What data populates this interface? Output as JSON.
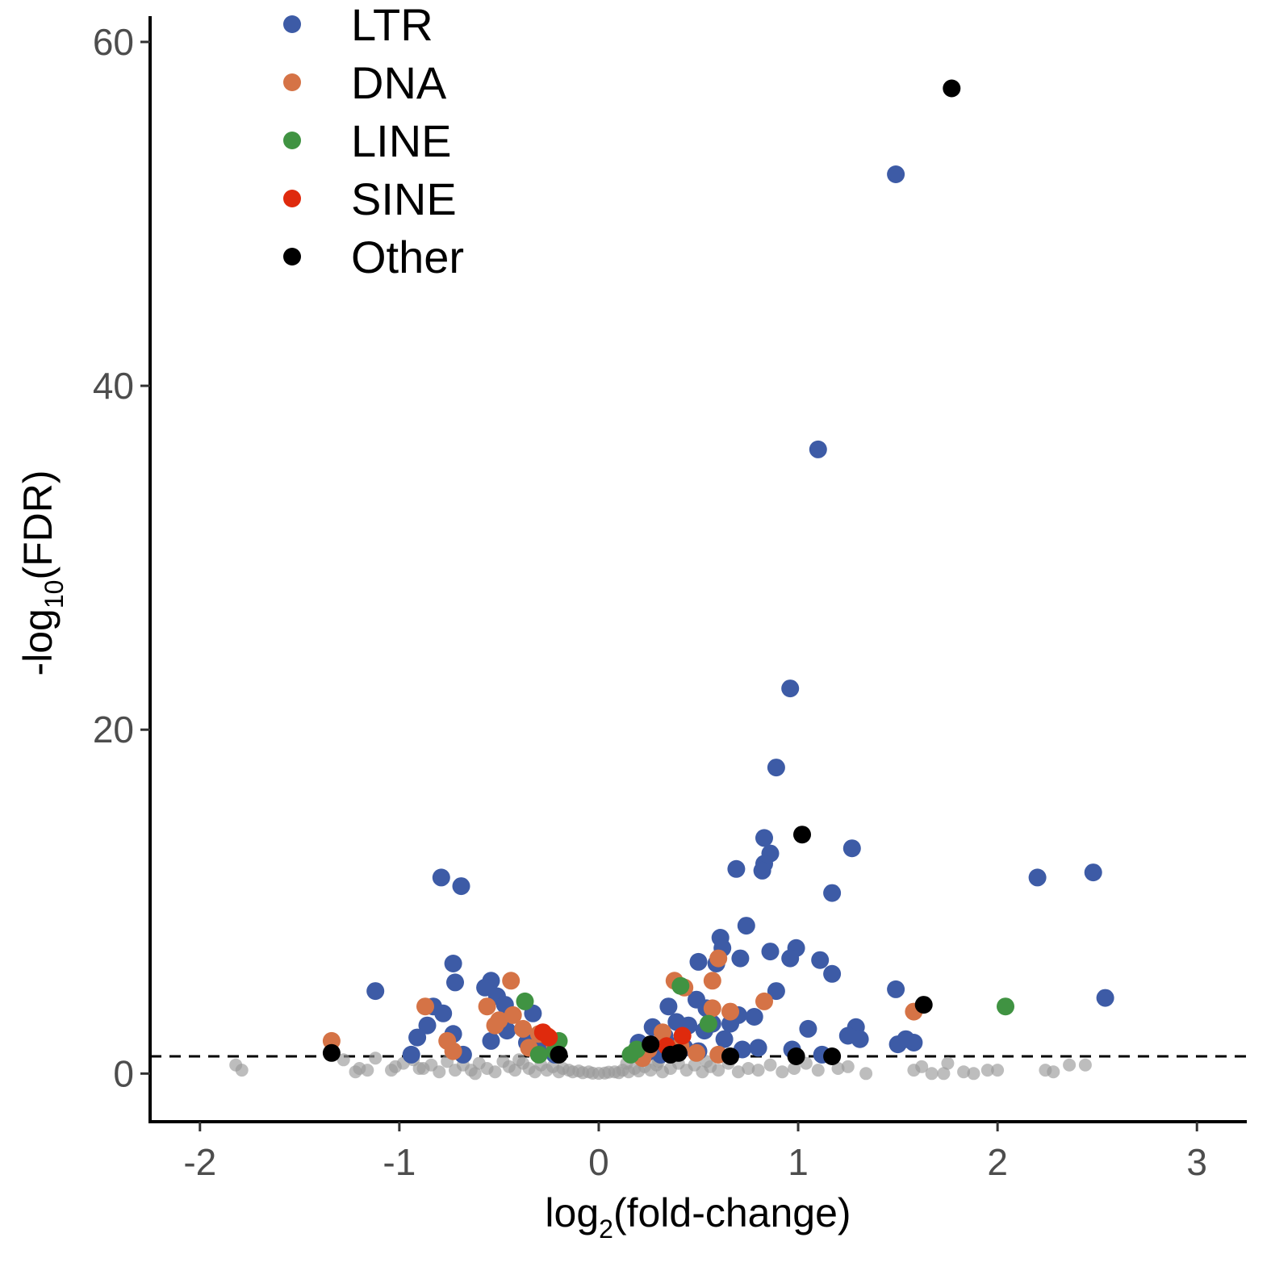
{
  "chart_data": {
    "type": "scatter",
    "title": "",
    "xlabel": {
      "prefix": "log",
      "sub": "2",
      "suffix": "(fold-change)"
    },
    "ylabel": {
      "prefix": "-log",
      "sub": "10",
      "suffix": "(FDR)"
    },
    "xlim": [
      -2.25,
      3.25
    ],
    "ylim": [
      -2.8,
      61.5
    ],
    "x_ticks": [
      -2,
      -1,
      0,
      1,
      2,
      3
    ],
    "y_ticks": [
      0,
      20,
      40,
      60
    ],
    "threshold_line": {
      "y": 1,
      "style": "dashed"
    },
    "grid": false,
    "legend_position": "top-left",
    "colors": {
      "LTR": "#3d5ba6",
      "DNA": "#d57346",
      "LINE": "#409342",
      "SINE": "#df2a0d",
      "Other": "#000000",
      "ns": "#999999"
    },
    "legend": [
      "LTR",
      "DNA",
      "LINE",
      "SINE",
      "Other"
    ],
    "series": [
      {
        "name": "LTR",
        "points": [
          [
            1.49,
            52.3
          ],
          [
            1.1,
            36.3
          ],
          [
            0.96,
            22.4
          ],
          [
            0.89,
            17.8
          ],
          [
            0.83,
            13.7
          ],
          [
            0.86,
            12.8
          ],
          [
            0.83,
            12.2
          ],
          [
            0.82,
            11.8
          ],
          [
            0.69,
            11.9
          ],
          [
            1.27,
            13.1
          ],
          [
            1.17,
            10.5
          ],
          [
            2.2,
            11.4
          ],
          [
            2.48,
            11.7
          ],
          [
            -0.79,
            11.4
          ],
          [
            -0.69,
            10.9
          ],
          [
            0.74,
            8.6
          ],
          [
            0.61,
            7.9
          ],
          [
            0.62,
            7.3
          ],
          [
            0.86,
            7.1
          ],
          [
            0.99,
            7.3
          ],
          [
            0.96,
            6.7
          ],
          [
            1.11,
            6.6
          ],
          [
            0.71,
            6.7
          ],
          [
            0.5,
            6.5
          ],
          [
            0.59,
            6.4
          ],
          [
            1.17,
            5.8
          ],
          [
            0.89,
            4.8
          ],
          [
            1.49,
            4.9
          ],
          [
            2.54,
            4.4
          ],
          [
            0.49,
            4.3
          ],
          [
            0.54,
            3.8
          ],
          [
            0.35,
            3.9
          ],
          [
            -1.12,
            4.8
          ],
          [
            -0.73,
            6.4
          ],
          [
            -0.72,
            5.3
          ],
          [
            -0.54,
            5.4
          ],
          [
            -0.57,
            5.0
          ],
          [
            -0.51,
            4.5
          ],
          [
            -0.47,
            4.0
          ],
          [
            -0.33,
            3.5
          ],
          [
            -0.83,
            3.9
          ],
          [
            -0.78,
            3.5
          ],
          [
            -0.86,
            2.8
          ],
          [
            -0.91,
            2.1
          ],
          [
            -0.73,
            2.3
          ],
          [
            -0.54,
            1.9
          ],
          [
            -0.46,
            2.5
          ],
          [
            0.7,
            3.4
          ],
          [
            0.78,
            3.3
          ],
          [
            1.05,
            2.6
          ],
          [
            1.29,
            2.7
          ],
          [
            1.25,
            2.2
          ],
          [
            1.31,
            2.0
          ],
          [
            1.5,
            1.7
          ],
          [
            1.54,
            2.0
          ],
          [
            1.58,
            1.8
          ],
          [
            0.27,
            2.7
          ],
          [
            0.33,
            2.2
          ],
          [
            0.39,
            3.0
          ],
          [
            0.45,
            2.8
          ],
          [
            0.53,
            2.5
          ],
          [
            0.57,
            2.9
          ],
          [
            0.63,
            2.0
          ],
          [
            0.66,
            2.9
          ],
          [
            0.41,
            1.8
          ],
          [
            0.2,
            1.8
          ],
          [
            0.24,
            1.2
          ],
          [
            0.31,
            1.1
          ],
          [
            0.29,
            1.6
          ],
          [
            0.37,
            1.4
          ],
          [
            0.43,
            1.5
          ],
          [
            0.5,
            1.3
          ],
          [
            0.72,
            1.4
          ],
          [
            0.8,
            1.5
          ],
          [
            0.97,
            1.4
          ],
          [
            1.12,
            1.1
          ],
          [
            -0.94,
            1.1
          ],
          [
            -0.68,
            1.1
          ],
          [
            -0.36,
            1.8
          ],
          [
            -0.28,
            1.5
          ],
          [
            -0.22,
            1.1
          ]
        ]
      },
      {
        "name": "DNA",
        "points": [
          [
            0.6,
            6.7
          ],
          [
            0.38,
            5.4
          ],
          [
            0.43,
            5.0
          ],
          [
            0.57,
            5.4
          ],
          [
            0.83,
            4.2
          ],
          [
            0.66,
            3.6
          ],
          [
            0.57,
            3.8
          ],
          [
            1.58,
            3.6
          ],
          [
            -0.44,
            5.4
          ],
          [
            -0.87,
            3.9
          ],
          [
            -0.56,
            3.9
          ],
          [
            -0.5,
            3.1
          ],
          [
            -0.52,
            2.8
          ],
          [
            -0.43,
            3.4
          ],
          [
            -0.38,
            2.6
          ],
          [
            -0.3,
            2.3
          ],
          [
            -0.26,
            2.2
          ],
          [
            -0.22,
            1.6
          ],
          [
            -0.35,
            1.5
          ],
          [
            -0.76,
            1.9
          ],
          [
            -0.73,
            1.3
          ],
          [
            -1.34,
            1.9
          ],
          [
            0.32,
            2.4
          ],
          [
            0.25,
            1.4
          ],
          [
            0.41,
            1.6
          ],
          [
            0.49,
            1.2
          ],
          [
            0.6,
            1.1
          ],
          [
            0.22,
            0.9
          ]
        ]
      },
      {
        "name": "LINE",
        "points": [
          [
            0.41,
            5.1
          ],
          [
            -0.37,
            4.2
          ],
          [
            2.04,
            3.9
          ],
          [
            0.55,
            2.9
          ],
          [
            -0.2,
            1.9
          ],
          [
            -0.22,
            1.3
          ],
          [
            0.16,
            1.1
          ],
          [
            0.19,
            1.4
          ],
          [
            -0.3,
            1.1
          ]
        ]
      },
      {
        "name": "SINE",
        "points": [
          [
            0.42,
            2.2
          ],
          [
            -0.28,
            2.4
          ],
          [
            -0.25,
            2.1
          ],
          [
            0.34,
            1.6
          ]
        ]
      },
      {
        "name": "Other",
        "points": [
          [
            1.77,
            57.3
          ],
          [
            1.02,
            13.9
          ],
          [
            1.63,
            4.0
          ],
          [
            -1.34,
            1.2
          ],
          [
            0.26,
            1.7
          ],
          [
            0.36,
            1.1
          ],
          [
            0.66,
            1.0
          ],
          [
            0.99,
            1.0
          ],
          [
            1.17,
            1.0
          ],
          [
            -0.2,
            1.1
          ],
          [
            0.4,
            1.2
          ]
        ]
      },
      {
        "name": "",
        "role": "not-significant",
        "points": [
          [
            -1.82,
            0.5
          ],
          [
            -1.79,
            0.2
          ],
          [
            -1.28,
            0.8
          ],
          [
            -1.22,
            0.1
          ],
          [
            -1.2,
            0.3
          ],
          [
            -1.16,
            0.2
          ],
          [
            -1.12,
            0.9
          ],
          [
            -1.04,
            0.2
          ],
          [
            -1.02,
            0.4
          ],
          [
            -0.98,
            0.6
          ],
          [
            -0.93,
            0.8
          ],
          [
            -0.88,
            0.3
          ],
          [
            -0.84,
            0.5
          ],
          [
            -0.8,
            0.1
          ],
          [
            -0.76,
            0.7
          ],
          [
            -0.72,
            0.2
          ],
          [
            -0.68,
            0.5
          ],
          [
            -0.64,
            0.2
          ],
          [
            -0.6,
            0.6
          ],
          [
            -0.56,
            0.3
          ],
          [
            -0.52,
            0.1
          ],
          [
            -0.48,
            0.7
          ],
          [
            -0.45,
            0.4
          ],
          [
            -0.42,
            0.2
          ],
          [
            -0.38,
            0.6
          ],
          [
            -0.35,
            0.3
          ],
          [
            -0.32,
            0.1
          ],
          [
            -0.29,
            0.5
          ],
          [
            -0.26,
            0.2
          ],
          [
            -0.23,
            0.4
          ],
          [
            -0.2,
            0.1
          ],
          [
            -0.18,
            0.3
          ],
          [
            -0.15,
            0.2
          ],
          [
            -0.13,
            0.1
          ],
          [
            -0.1,
            0.15
          ],
          [
            -0.08,
            0.05
          ],
          [
            -0.05,
            0.1
          ],
          [
            -0.03,
            0.02
          ],
          [
            0.0,
            0.01
          ],
          [
            0.03,
            0.03
          ],
          [
            0.05,
            0.08
          ],
          [
            0.08,
            0.1
          ],
          [
            0.1,
            0.05
          ],
          [
            0.12,
            0.2
          ],
          [
            0.15,
            0.1
          ],
          [
            0.18,
            0.3
          ],
          [
            0.2,
            0.15
          ],
          [
            0.23,
            0.4
          ],
          [
            0.26,
            0.2
          ],
          [
            0.29,
            0.5
          ],
          [
            0.32,
            0.1
          ],
          [
            0.36,
            0.3
          ],
          [
            0.4,
            0.6
          ],
          [
            0.44,
            0.2
          ],
          [
            0.48,
            0.5
          ],
          [
            0.52,
            0.1
          ],
          [
            0.56,
            0.4
          ],
          [
            0.6,
            0.2
          ],
          [
            0.65,
            0.6
          ],
          [
            0.7,
            0.1
          ],
          [
            0.75,
            0.3
          ],
          [
            0.8,
            0.2
          ],
          [
            0.86,
            0.5
          ],
          [
            0.92,
            0.1
          ],
          [
            0.98,
            0.3
          ],
          [
            1.04,
            0.6
          ],
          [
            1.1,
            0.2
          ],
          [
            1.2,
            0.3
          ],
          [
            1.25,
            0.4
          ],
          [
            1.34,
            0.0
          ],
          [
            1.58,
            0.2
          ],
          [
            1.62,
            0.4
          ],
          [
            1.67,
            0.0
          ],
          [
            1.73,
            0.0
          ],
          [
            1.75,
            0.6
          ],
          [
            1.83,
            0.1
          ],
          [
            1.88,
            0.0
          ],
          [
            1.95,
            0.2
          ],
          [
            2.0,
            0.2
          ],
          [
            2.24,
            0.2
          ],
          [
            2.28,
            0.1
          ],
          [
            2.36,
            0.5
          ],
          [
            2.44,
            0.5
          ],
          [
            -0.9,
            0.3
          ],
          [
            -0.62,
            0.0
          ],
          [
            0.3,
            0.7
          ],
          [
            0.54,
            0.7
          ],
          [
            -0.4,
            0.8
          ],
          [
            0.14,
            0.6
          ]
        ]
      }
    ]
  }
}
